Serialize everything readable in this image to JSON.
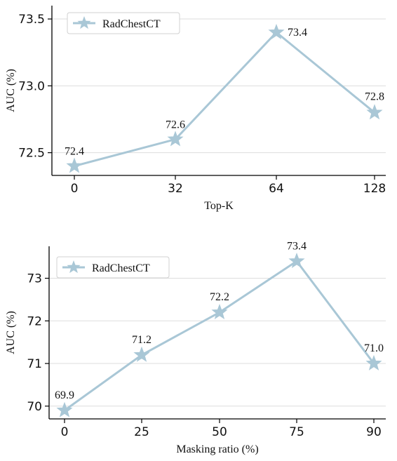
{
  "style": {
    "line_color": "#a9c7d6",
    "grid_color": "#dddddd",
    "axis_color": "#000000"
  },
  "chart_data": [
    {
      "type": "line",
      "xlabel": "Top-K",
      "ylabel": "AUC (%)",
      "categories": [
        "0",
        "32",
        "64",
        "128"
      ],
      "yticks": [
        "72.5",
        "73.0",
        "73.5"
      ],
      "ytick_values": [
        72.5,
        73.0,
        73.5
      ],
      "ylim": [
        72.33,
        73.6
      ],
      "grid": true,
      "legend": "top-left",
      "marker": "star",
      "series": [
        {
          "name": "RadChestCT",
          "values": [
            72.4,
            72.6,
            73.4,
            72.8
          ],
          "labels": [
            "72.4",
            "72.6",
            "73.4",
            "72.8"
          ]
        }
      ]
    },
    {
      "type": "line",
      "xlabel": "Masking ratio (%)",
      "ylabel": "AUC (%)",
      "categories": [
        "0",
        "25",
        "50",
        "75",
        "90"
      ],
      "yticks": [
        "70",
        "71",
        "72",
        "73"
      ],
      "ytick_values": [
        70,
        71,
        72,
        73
      ],
      "ylim": [
        69.7,
        73.75
      ],
      "grid": true,
      "legend": "top-left",
      "marker": "star",
      "series": [
        {
          "name": "RadChestCT",
          "values": [
            69.9,
            71.2,
            72.2,
            73.4,
            71.0
          ],
          "labels": [
            "69.9",
            "71.2",
            "72.2",
            "73.4",
            "71.0"
          ]
        }
      ]
    }
  ]
}
